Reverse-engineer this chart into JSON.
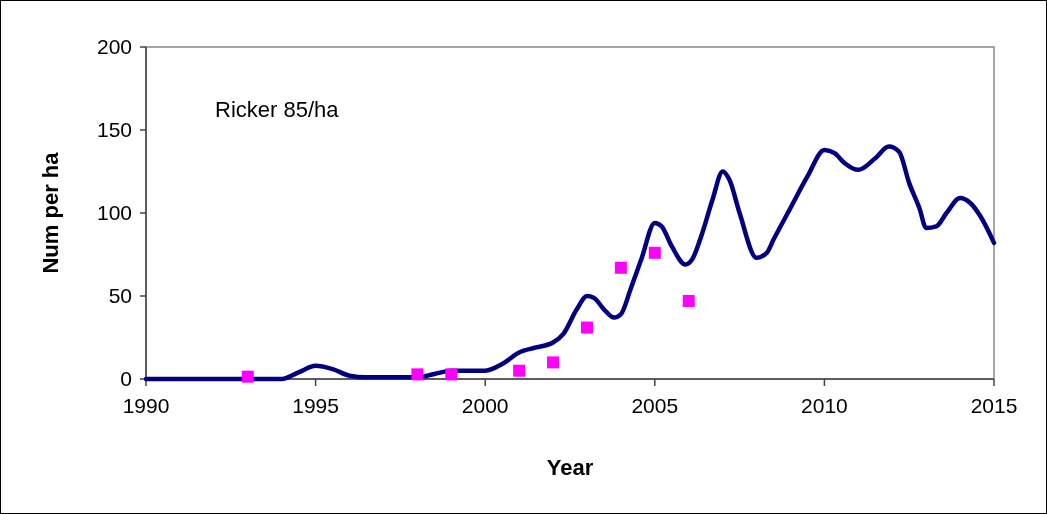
{
  "chart_data": {
    "type": "line",
    "xlabel": "Year",
    "ylabel": "Num per ha",
    "annotations": [
      "Ricker 85/ha"
    ],
    "xlim": [
      1990,
      2015
    ],
    "ylim": [
      0,
      200
    ],
    "xticks": [
      1990,
      1995,
      2000,
      2005,
      2010,
      2015
    ],
    "yticks": [
      0,
      50,
      100,
      150,
      200
    ],
    "grid": false,
    "series": [
      {
        "color": "#000080",
        "marker": "none",
        "line_style": "solid",
        "x": [
          1990,
          1994,
          1994.5,
          1995,
          1995.5,
          1996,
          1996.5,
          1997,
          1998,
          1998.5,
          1999,
          1999.5,
          2000,
          2000.5,
          2001,
          2001.5,
          2002,
          2002.3,
          2002.7,
          2003,
          2003.2,
          2003.5,
          2003.8,
          2004,
          2004.3,
          2004.6,
          2005,
          2005.2,
          2005.5,
          2005.9,
          2006.1,
          2006.4,
          2006.7,
          2007,
          2007.2,
          2007.5,
          2008,
          2008.3,
          2008.5,
          2009,
          2009.5,
          2010,
          2010.3,
          2010.6,
          2011,
          2011.5,
          2011.9,
          2012.2,
          2012.5,
          2012.8,
          2013,
          2013.3,
          2013.6,
          2014,
          2014.3,
          2014.6,
          2015
        ],
        "values": [
          0,
          0,
          4,
          8,
          6,
          2,
          1,
          1,
          1,
          3,
          5,
          5,
          5,
          9,
          16,
          19,
          22,
          27,
          42,
          50,
          49,
          42,
          37,
          39,
          55,
          72,
          94,
          92,
          80,
          69,
          72,
          88,
          108,
          125,
          120,
          100,
          73,
          76,
          84,
          103,
          122,
          138,
          136,
          130,
          126,
          133,
          140,
          137,
          118,
          103,
          91,
          92,
          100,
          109,
          106,
          98,
          82
        ]
      },
      {
        "type": "scatter",
        "color": "#ff00ff",
        "marker": "square",
        "x": [
          1993,
          1998,
          1999,
          2001,
          2002,
          2003,
          2004,
          2005,
          2006
        ],
        "values": [
          1.4,
          2.8,
          2.8,
          5,
          10,
          31,
          67,
          76,
          47
        ]
      }
    ]
  }
}
